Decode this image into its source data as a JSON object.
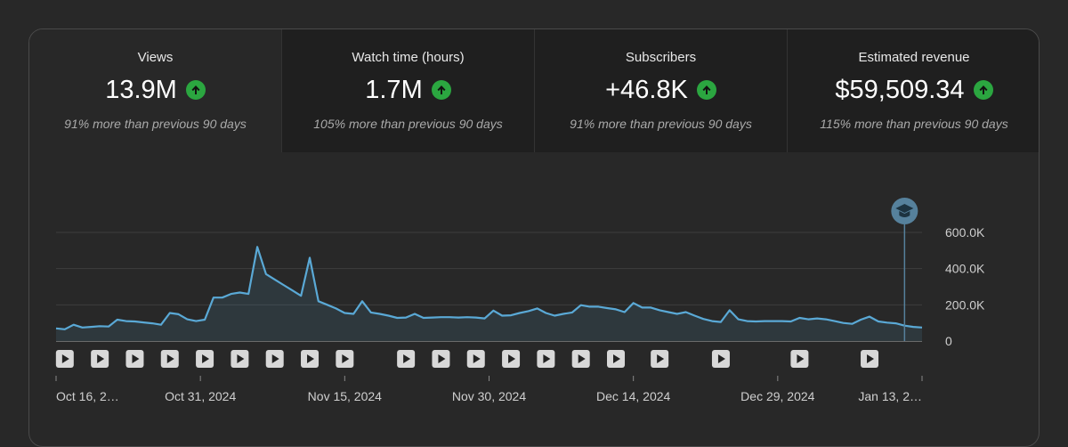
{
  "cards": [
    {
      "label": "Views",
      "value": "13.9M",
      "change": "91% more than previous 90 days"
    },
    {
      "label": "Watch time (hours)",
      "value": "1.7M",
      "change": "105% more than previous 90 days"
    },
    {
      "label": "Subscribers",
      "value": "+46.8K",
      "change": "91% more than previous 90 days"
    },
    {
      "label": "Estimated revenue",
      "value": "$59,509.34",
      "change": "115% more than previous 90 days"
    }
  ],
  "icons": {
    "trend": "arrow-up-icon",
    "marker": "graduation-cap-icon",
    "video": "play-icon"
  },
  "colors": {
    "line": "#5aa9d6",
    "up": "#2ba640",
    "marker": "#56819c"
  },
  "chart_data": {
    "type": "line",
    "metric": "Views",
    "ylim": [
      0,
      600000
    ],
    "y_ticks": [
      {
        "value": 0,
        "label": "0"
      },
      {
        "value": 200000,
        "label": "200.0K"
      },
      {
        "value": 400000,
        "label": "400.0K"
      },
      {
        "value": 600000,
        "label": "600.0K"
      }
    ],
    "x_ticks": [
      "Oct 16, 2…",
      "Oct 31, 2024",
      "Nov 15, 2024",
      "Nov 30, 2024",
      "Dec 14, 2024",
      "Dec 29, 2024",
      "Jan 13, 2…"
    ],
    "values": [
      70000,
      65000,
      90000,
      75000,
      78000,
      82000,
      80000,
      118000,
      110000,
      108000,
      103000,
      98000,
      90000,
      155000,
      148000,
      120000,
      110000,
      118000,
      240000,
      240000,
      260000,
      268000,
      260000,
      520000,
      370000,
      340000,
      310000,
      280000,
      250000,
      460000,
      220000,
      200000,
      180000,
      155000,
      150000,
      220000,
      158000,
      150000,
      140000,
      128000,
      130000,
      150000,
      128000,
      130000,
      132000,
      132000,
      130000,
      132000,
      130000,
      125000,
      168000,
      140000,
      142000,
      155000,
      165000,
      180000,
      155000,
      140000,
      150000,
      158000,
      198000,
      190000,
      190000,
      182000,
      175000,
      160000,
      210000,
      185000,
      185000,
      170000,
      160000,
      150000,
      160000,
      140000,
      122000,
      110000,
      105000,
      170000,
      120000,
      110000,
      108000,
      110000,
      110000,
      110000,
      108000,
      128000,
      120000,
      125000,
      120000,
      110000,
      100000,
      95000,
      118000,
      135000,
      108000,
      102000,
      98000,
      85000,
      78000,
      75000
    ],
    "video_markers": [
      1,
      5,
      9,
      13,
      17,
      21,
      25,
      29,
      33,
      40,
      44,
      48,
      52,
      56,
      60,
      64,
      69,
      76,
      85,
      93
    ],
    "highlight_index": 97
  }
}
